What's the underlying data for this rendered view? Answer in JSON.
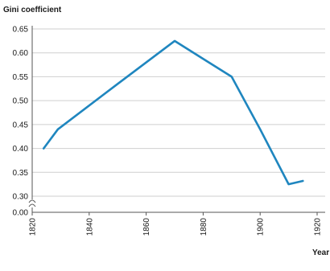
{
  "chart_data": {
    "type": "line",
    "title": "",
    "xlabel": "Year",
    "ylabel": "Gini coefficient",
    "xlim": [
      1820,
      1920
    ],
    "ylim": [
      0.3,
      0.65
    ],
    "y_axis_break": true,
    "y_ticks": [
      0.0,
      0.3,
      0.35,
      0.4,
      0.45,
      0.5,
      0.55,
      0.6,
      0.65
    ],
    "y_tick_labels": [
      "0.00",
      "0.30",
      "0.35",
      "0.40",
      "0.45",
      "0.50",
      "0.55",
      "0.60",
      "0.65"
    ],
    "x_ticks": [
      1820,
      1840,
      1860,
      1880,
      1900,
      1920
    ],
    "x_tick_labels": [
      "1820",
      "1840",
      "1860",
      "1880",
      "1900",
      "1920"
    ],
    "grid": "horizontal",
    "line_color": "#1f86bf",
    "series": [
      {
        "x": [
          1824,
          1829,
          1850,
          1870,
          1890,
          1900,
          1910,
          1915
        ],
        "values": [
          0.4,
          0.44,
          0.535,
          0.625,
          0.55,
          0.44,
          0.325,
          0.332
        ]
      }
    ]
  }
}
